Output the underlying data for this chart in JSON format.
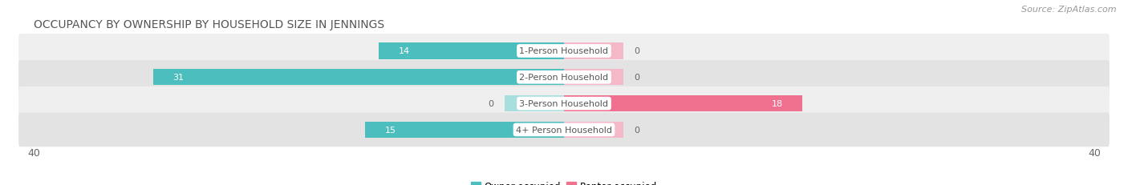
{
  "title": "OCCUPANCY BY OWNERSHIP BY HOUSEHOLD SIZE IN JENNINGS",
  "source": "Source: ZipAtlas.com",
  "categories": [
    "1-Person Household",
    "2-Person Household",
    "3-Person Household",
    "4+ Person Household"
  ],
  "owner_values": [
    14,
    31,
    0,
    15
  ],
  "renter_values": [
    0,
    0,
    18,
    0
  ],
  "owner_color": "#4DBEBE",
  "renter_color": "#F07090",
  "owner_stub_color": "#A8DEDE",
  "renter_stub_color": "#F5B8C8",
  "row_bg_even": "#EFEFEF",
  "row_bg_odd": "#E3E3E3",
  "xlim": 40,
  "label_fontsize": 8.0,
  "title_fontsize": 10,
  "source_fontsize": 8,
  "legend_fontsize": 8.5,
  "axis_label_fontsize": 9,
  "bar_height": 0.62,
  "stub_size": 4.5,
  "figsize": [
    14.06,
    2.32
  ],
  "dpi": 100
}
